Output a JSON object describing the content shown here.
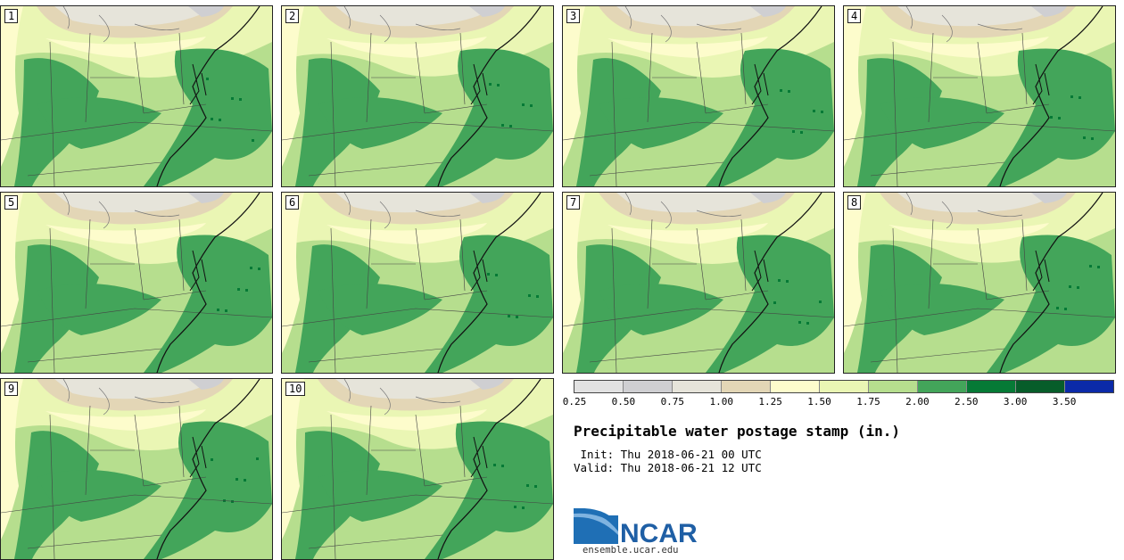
{
  "panels": [
    {
      "label": "1"
    },
    {
      "label": "2"
    },
    {
      "label": "3"
    },
    {
      "label": "4"
    },
    {
      "label": "5"
    },
    {
      "label": "6"
    },
    {
      "label": "7"
    },
    {
      "label": "8"
    },
    {
      "label": "9"
    },
    {
      "label": "10"
    }
  ],
  "legend": {
    "ticks": [
      "0.25",
      "0.50",
      "0.75",
      "1.00",
      "1.25",
      "1.50",
      "1.75",
      "2.00",
      "2.50",
      "3.00",
      "3.50"
    ],
    "colors": [
      "#e2e2e2",
      "#cfcfd2",
      "#e6e4da",
      "#e3d6b6",
      "#fdfccc",
      "#eaf6b4",
      "#b6de8e",
      "#43a55a",
      "#067a36",
      "#075d2a",
      "#0b2aa8"
    ]
  },
  "title": "Precipitable water postage stamp (in.)",
  "init": " Init: Thu 2018-06-21 00 UTC",
  "valid": "Valid: Thu 2018-06-21 12 UTC",
  "logo": {
    "text": "NCAR",
    "url": "ensemble.ucar.edu"
  }
}
